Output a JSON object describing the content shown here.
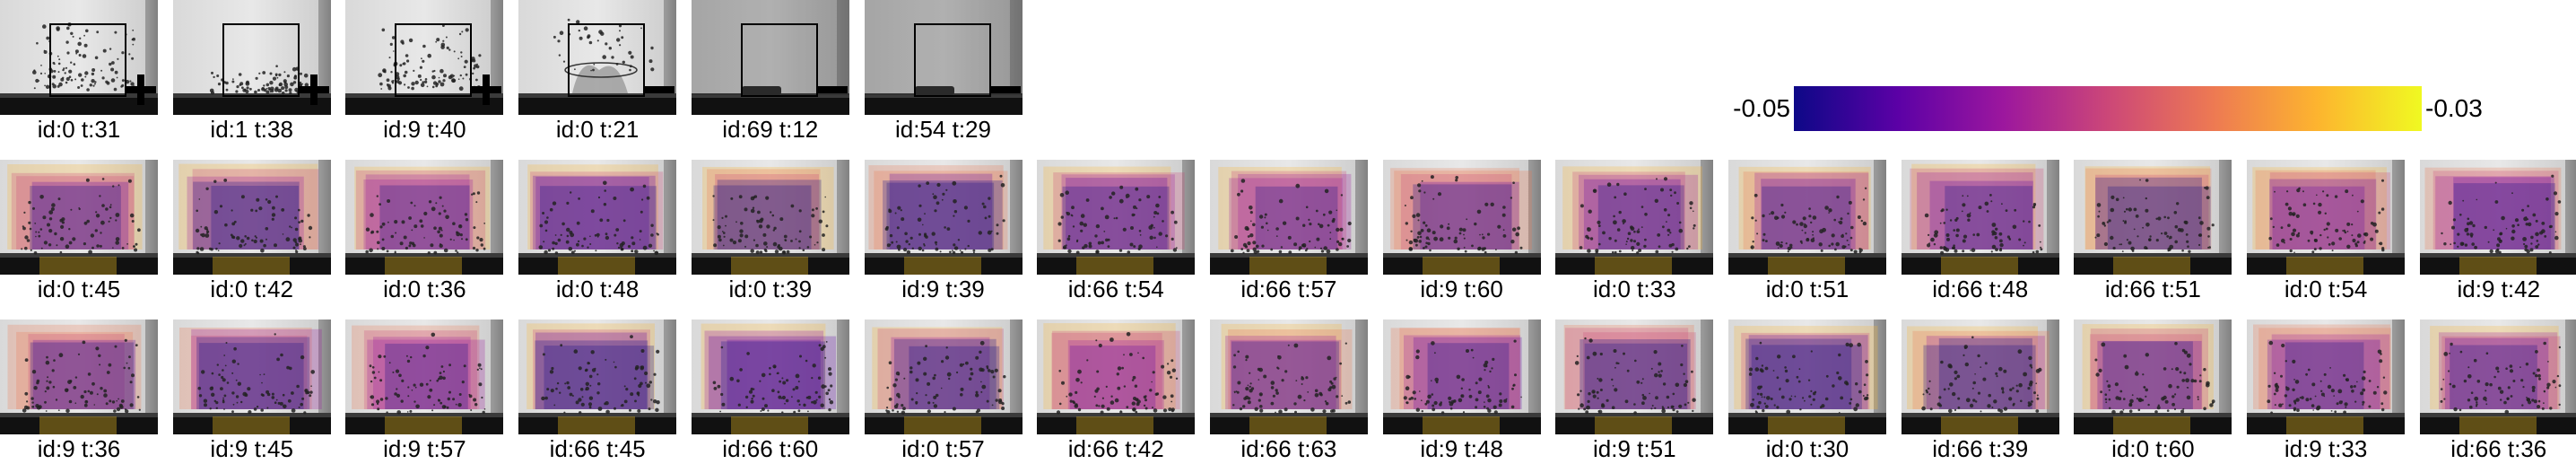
{
  "colorbar": {
    "min_label": "-0.05",
    "max_label": "-0.03",
    "gradient_colors": [
      "#0d0887",
      "#5c01a6",
      "#9c179e",
      "#cc4778",
      "#ed7953",
      "#fdb42f",
      "#f0f921"
    ]
  },
  "rows": [
    {
      "kind": "example",
      "tiles": [
        {
          "id": "id:0 t:31",
          "marker": "plus",
          "state": "dispersed"
        },
        {
          "id": "id:1 t:38",
          "marker": "plus",
          "state": "settled"
        },
        {
          "id": "id:9 t:40",
          "marker": "plus",
          "state": "dispersed"
        },
        {
          "id": "id:0 t:21",
          "marker": "minus",
          "state": "splash"
        },
        {
          "id": "id:69 t:12",
          "marker": "minus",
          "state": "empty-dark"
        },
        {
          "id": "id:54 t:29",
          "marker": "minus",
          "state": "empty-dark"
        }
      ]
    },
    {
      "kind": "heatmap",
      "tiles": [
        {
          "id": "id:0 t:45"
        },
        {
          "id": "id:0 t:42"
        },
        {
          "id": "id:0 t:36"
        },
        {
          "id": "id:0 t:48"
        },
        {
          "id": "id:0 t:39"
        },
        {
          "id": "id:9 t:39"
        },
        {
          "id": "id:66 t:54"
        },
        {
          "id": "id:66 t:57"
        },
        {
          "id": "id:9 t:60"
        },
        {
          "id": "id:0 t:33"
        },
        {
          "id": "id:0 t:51"
        },
        {
          "id": "id:66 t:48"
        },
        {
          "id": "id:66 t:51"
        },
        {
          "id": "id:0 t:54"
        },
        {
          "id": "id:9 t:42"
        }
      ]
    },
    {
      "kind": "heatmap",
      "tiles": [
        {
          "id": "id:9 t:36"
        },
        {
          "id": "id:9 t:45"
        },
        {
          "id": "id:9 t:57"
        },
        {
          "id": "id:66 t:45"
        },
        {
          "id": "id:66 t:60"
        },
        {
          "id": "id:0 t:57"
        },
        {
          "id": "id:66 t:42"
        },
        {
          "id": "id:66 t:63"
        },
        {
          "id": "id:9 t:48"
        },
        {
          "id": "id:9 t:51"
        },
        {
          "id": "id:0 t:30"
        },
        {
          "id": "id:66 t:39"
        },
        {
          "id": "id:0 t:60"
        },
        {
          "id": "id:9 t:33"
        },
        {
          "id": "id:66 t:36"
        }
      ]
    }
  ]
}
